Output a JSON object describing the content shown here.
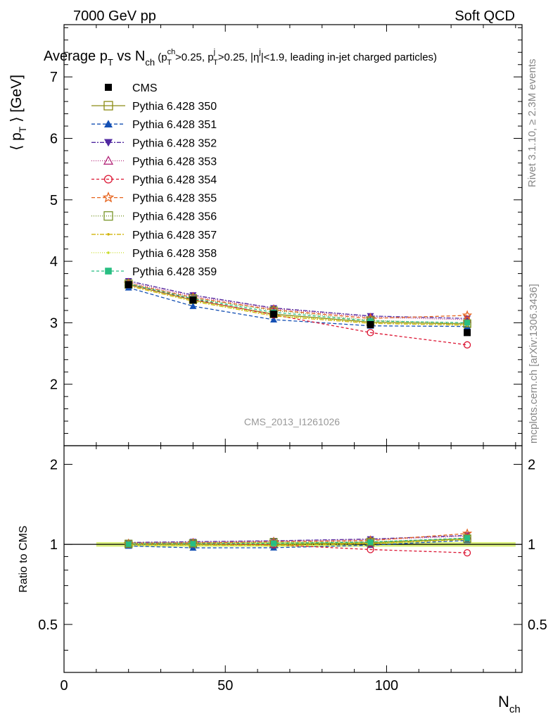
{
  "header": {
    "left": "7000 GeV pp",
    "right": "Soft QCD"
  },
  "title": {
    "main_a": "Average p",
    "main_sub_a": "T",
    "main_b": " vs N",
    "main_sub_b": "ch",
    "cut_a": " (p",
    "cut_sup_a": "ch",
    "cut_sub_a": "T",
    "cut_b": ">0.25, p",
    "cut_sup_b": "j",
    "cut_sub_b": "T",
    "cut_c": ">0.25, |η",
    "cut_sup_c": "j",
    "cut_d": "|<1.9, leading in-jet charged particles)"
  },
  "side_text": {
    "rivet": "Rivet 3.1.10, ≥ 2.3M events",
    "mcplots": "mcplots.cern.ch [arXiv:1306.3436]"
  },
  "watermark": "CMS_2013_I1261026",
  "chart_data": {
    "type": "line",
    "xlabel": "N",
    "xlabel_sub": "ch",
    "ylabel_main": "⟨ p",
    "ylabel_main_sub": "T",
    "ylabel_main_rest": " ⟩ [GeV]",
    "ylabel_ratio": "Ratio to CMS",
    "xlim": [
      0,
      142
    ],
    "ylim_main": [
      1.0,
      7.85
    ],
    "ylim_ratio": [
      0.33,
      2.35
    ],
    "ratio_scale": "log",
    "x_ticks": [
      "0",
      "50",
      "100"
    ],
    "y_ticks_main": [
      "2",
      "3",
      "4",
      "5",
      "6",
      "7"
    ],
    "y_ticks_ratio": [
      "0.5",
      "1",
      "2"
    ],
    "x": [
      20,
      40,
      65,
      95,
      125
    ],
    "data": {
      "name": "CMS",
      "values": [
        3.62,
        3.37,
        3.14,
        2.97,
        2.84
      ],
      "band_x": [
        10,
        140
      ],
      "band_halfwidth": 0.02
    },
    "series": [
      {
        "name": "Pythia 6.428 350",
        "color": "#8c8c14",
        "dash": "",
        "marker": "square-open",
        "values": [
          3.62,
          3.37,
          3.14,
          3.01,
          2.98
        ]
      },
      {
        "name": "Pythia 6.428 351",
        "color": "#1450b4",
        "dash": "5,3",
        "marker": "triangle-up-filled",
        "values": [
          3.57,
          3.27,
          3.05,
          2.95,
          2.94
        ]
      },
      {
        "name": "Pythia 6.428 352",
        "color": "#5028a0",
        "dash": "6,2,2,2",
        "marker": "triangle-down-filled",
        "values": [
          3.68,
          3.45,
          3.24,
          3.11,
          3.07
        ]
      },
      {
        "name": "Pythia 6.428 353",
        "color": "#b4287a",
        "dash": "1,2",
        "marker": "triangle-up-open",
        "values": [
          3.66,
          3.43,
          3.23,
          3.09,
          3.05
        ]
      },
      {
        "name": "Pythia 6.428 354",
        "color": "#dc1432",
        "dash": "4,3",
        "marker": "circle-open",
        "values": [
          3.62,
          3.38,
          3.13,
          2.84,
          2.64
        ]
      },
      {
        "name": "Pythia 6.428 355",
        "color": "#e6641e",
        "dash": "5,3",
        "marker": "star-open",
        "values": [
          3.64,
          3.41,
          3.21,
          3.07,
          3.12
        ]
      },
      {
        "name": "Pythia 6.428 356",
        "color": "#7a9628",
        "dash": "1,2",
        "marker": "square-open",
        "values": [
          3.64,
          3.4,
          3.2,
          3.04,
          2.99
        ]
      },
      {
        "name": "Pythia 6.428 357",
        "color": "#d2b40a",
        "dash": "6,2,2,2",
        "marker": "dot",
        "values": [
          3.6,
          3.35,
          3.11,
          2.99,
          2.96
        ]
      },
      {
        "name": "Pythia 6.428 358",
        "color": "#c8dc28",
        "dash": "1,2",
        "marker": "dot",
        "values": [
          3.61,
          3.36,
          3.12,
          3.0,
          2.97
        ]
      },
      {
        "name": "Pythia 6.428 359",
        "color": "#28be82",
        "dash": "4,3",
        "marker": "square-filled",
        "values": [
          3.63,
          3.39,
          3.17,
          3.03,
          3.0
        ]
      }
    ]
  }
}
